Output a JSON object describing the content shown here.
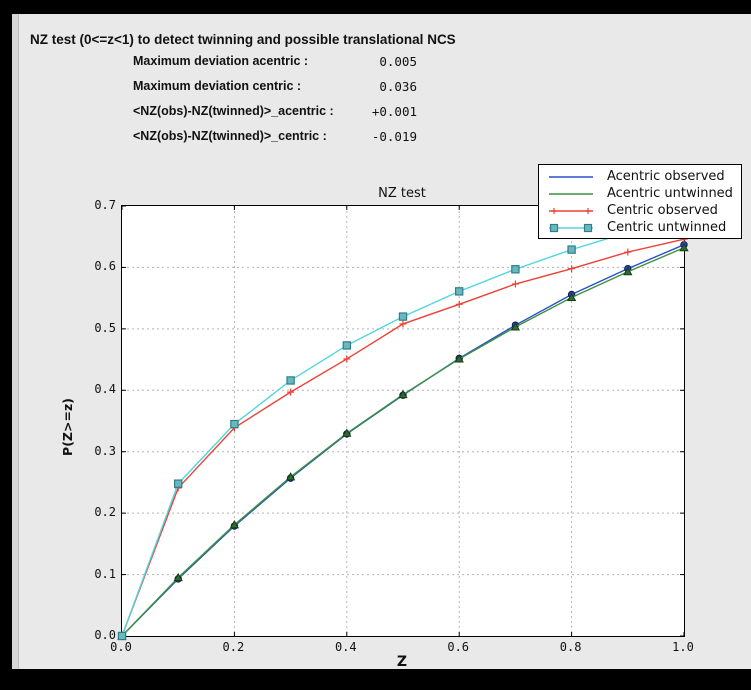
{
  "window": {
    "title": "NZ test (0<=z<1) to detect twinning and possible translational NCS",
    "stats": [
      {
        "label": "Maximum deviation acentric :",
        "value": "0.005"
      },
      {
        "label": "Maximum deviation centric :",
        "value": "0.036"
      },
      {
        "label": "<NZ(obs)-NZ(twinned)>_acentric :",
        "value": "+0.001"
      },
      {
        "label": "<NZ(obs)-NZ(twinned)>_centric :",
        "value": "-0.019"
      }
    ]
  },
  "chart_data": {
    "type": "line",
    "title": "NZ test",
    "xlabel": "Z",
    "ylabel": "P(Z>=z)",
    "xlim": [
      0.0,
      1.0
    ],
    "ylim": [
      0.0,
      0.7
    ],
    "x_ticks": [
      0.0,
      0.2,
      0.4,
      0.6,
      0.8,
      1.0
    ],
    "y_ticks": [
      0.0,
      0.1,
      0.2,
      0.3,
      0.4,
      0.5,
      0.6,
      0.7
    ],
    "grid": true,
    "legend_position": "upper right",
    "x": [
      0.0,
      0.1,
      0.2,
      0.3,
      0.4,
      0.5,
      0.6,
      0.7,
      0.8,
      0.9,
      1.0
    ],
    "series": [
      {
        "name": "Acentric observed",
        "color": "#2a4fcd",
        "marker": "circle",
        "marker_fill": "#2343b8",
        "marker_edge": "#0d1b52",
        "legend_marker": "none",
        "values": [
          0.0,
          0.093,
          0.179,
          0.257,
          0.329,
          0.392,
          0.452,
          0.506,
          0.556,
          0.598,
          0.637
        ]
      },
      {
        "name": "Acentric untwinned",
        "color": "#3d9140",
        "marker": "triangle",
        "marker_fill": "#2c6e2f",
        "marker_edge": "#173b17",
        "legend_marker": "none",
        "values": [
          0.0,
          0.095,
          0.181,
          0.259,
          0.33,
          0.393,
          0.451,
          0.503,
          0.551,
          0.593,
          0.632
        ]
      },
      {
        "name": "Centric observed",
        "color": "#ee4035",
        "marker": "plus",
        "marker_fill": "#ee4035",
        "marker_edge": "#ee4035",
        "legend_marker": "plus",
        "values": [
          0.0,
          0.241,
          0.339,
          0.397,
          0.451,
          0.508,
          0.54,
          0.573,
          0.598,
          0.625,
          0.646
        ]
      },
      {
        "name": "Centric untwinned",
        "color": "#4fd5de",
        "marker": "square",
        "marker_fill": "#6ab8bf",
        "marker_edge": "#2e7f88",
        "legend_marker": "square",
        "values": [
          0.0,
          0.248,
          0.345,
          0.416,
          0.473,
          0.52,
          0.561,
          0.597,
          0.629,
          0.657,
          0.683
        ]
      }
    ],
    "grid_color": "#b3b3b3"
  }
}
